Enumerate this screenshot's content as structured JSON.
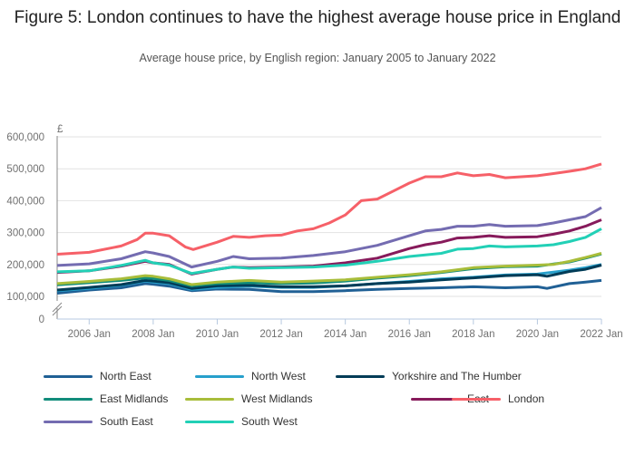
{
  "chart_data": {
    "type": "line",
    "title": "Figure 5: London continues to have the highest average house price in England",
    "subtitle": "Average house price, by English region: January 2005 to January 2022",
    "ylabel": "£",
    "xlabel": "",
    "ylim": [
      0,
      600000
    ],
    "axis_break": "between 0 and 100,000",
    "y_ticks": [
      "0",
      "100,000",
      "200,000",
      "300,000",
      "400,000",
      "500,000",
      "600,000"
    ],
    "y_tick_values": [
      0,
      100000,
      200000,
      300000,
      400000,
      500000,
      600000
    ],
    "x_ticks": [
      "2006 Jan",
      "2008 Jan",
      "2010 Jan",
      "2012 Jan",
      "2014 Jan",
      "2016 Jan",
      "2018 Jan",
      "2020 Jan",
      "2022 Jan"
    ],
    "x_tick_values": [
      2006,
      2008,
      2010,
      2012,
      2014,
      2016,
      2018,
      2020,
      2022
    ],
    "xlim": [
      2005,
      2022
    ],
    "grid": true,
    "legend_placement": "bottom",
    "series": [
      {
        "name": "North East",
        "color": "#206095",
        "x": [
          2005,
          2006,
          2007,
          2007.75,
          2008,
          2008.5,
          2009.2,
          2010,
          2011,
          2012,
          2013,
          2014,
          2015,
          2016,
          2017,
          2018,
          2019,
          2020,
          2020.3,
          2021,
          2021.5,
          2022
        ],
        "values": [
          110000,
          120000,
          127000,
          140000,
          138000,
          132000,
          118000,
          123000,
          122000,
          115000,
          115000,
          118000,
          122000,
          125000,
          127000,
          130000,
          127000,
          130000,
          125000,
          140000,
          145000,
          150000
        ]
      },
      {
        "name": "North West",
        "color": "#27a0cc",
        "x": [
          2005,
          2006,
          2007,
          2007.75,
          2008,
          2008.5,
          2009.2,
          2010,
          2011,
          2012,
          2013,
          2014,
          2015,
          2016,
          2017,
          2018,
          2019,
          2020,
          2021,
          2021.5,
          2022
        ],
        "values": [
          118000,
          125000,
          135000,
          148000,
          145000,
          140000,
          122000,
          128000,
          132000,
          128000,
          128000,
          133000,
          140000,
          147000,
          155000,
          160000,
          167000,
          170000,
          182000,
          190000,
          200000
        ]
      },
      {
        "name": "Yorkshire and The Humber",
        "color": "#003c57",
        "x": [
          2005,
          2006,
          2007,
          2007.75,
          2008,
          2008.5,
          2009.2,
          2010,
          2011,
          2012,
          2013,
          2014,
          2015,
          2016,
          2017,
          2018,
          2019,
          2020,
          2020.3,
          2021,
          2021.5,
          2022
        ],
        "values": [
          120000,
          128000,
          137000,
          150000,
          148000,
          143000,
          125000,
          133000,
          135000,
          130000,
          130000,
          133000,
          140000,
          145000,
          152000,
          158000,
          165000,
          168000,
          163000,
          178000,
          185000,
          198000
        ]
      },
      {
        "name": "East Midlands",
        "color": "#118c7b",
        "x": [
          2005,
          2006,
          2007,
          2007.75,
          2008,
          2008.5,
          2009.2,
          2010,
          2011,
          2012,
          2013,
          2014,
          2015,
          2016,
          2017,
          2018,
          2019,
          2020,
          2021,
          2021.5,
          2022
        ],
        "values": [
          136000,
          143000,
          150000,
          158000,
          156000,
          150000,
          133000,
          140000,
          143000,
          140000,
          142000,
          148000,
          157000,
          165000,
          175000,
          187000,
          193000,
          195000,
          208000,
          220000,
          233000
        ]
      },
      {
        "name": "West Midlands",
        "color": "#a8bd3a",
        "x": [
          2005,
          2006,
          2007,
          2007.75,
          2008,
          2008.5,
          2009.2,
          2010,
          2011,
          2012,
          2013,
          2014,
          2015,
          2016,
          2017,
          2018,
          2019,
          2020,
          2020.5,
          2021,
          2021.5,
          2022
        ],
        "values": [
          140000,
          147000,
          155000,
          165000,
          163000,
          155000,
          137000,
          145000,
          150000,
          145000,
          148000,
          152000,
          160000,
          168000,
          177000,
          190000,
          195000,
          198000,
          200000,
          210000,
          222000,
          235000
        ]
      },
      {
        "name": "East",
        "color": "#871a5b",
        "x": [
          2005,
          2006,
          2007,
          2007.75,
          2008,
          2008.5,
          2009.2,
          2010,
          2010.5,
          2011,
          2012,
          2013,
          2014,
          2015,
          2016,
          2016.5,
          2017,
          2017.5,
          2018,
          2018.5,
          2019,
          2020,
          2020.5,
          2021,
          2021.5,
          2022
        ],
        "values": [
          175000,
          180000,
          195000,
          210000,
          205000,
          200000,
          170000,
          185000,
          192000,
          190000,
          192000,
          195000,
          205000,
          220000,
          250000,
          262000,
          270000,
          283000,
          285000,
          290000,
          285000,
          287000,
          295000,
          305000,
          320000,
          340000
        ]
      },
      {
        "name": "London",
        "color": "#f66068",
        "x": [
          2005,
          2006,
          2007,
          2007.5,
          2007.75,
          2008,
          2008.5,
          2009,
          2009.25,
          2010,
          2010.5,
          2011,
          2011.5,
          2012,
          2012.5,
          2013,
          2013.5,
          2014,
          2014.5,
          2015,
          2015.5,
          2016,
          2016.5,
          2017,
          2017.5,
          2018,
          2018.5,
          2019,
          2019.5,
          2020,
          2020.5,
          2021,
          2021.5,
          2022
        ],
        "values": [
          232000,
          238000,
          258000,
          278000,
          298000,
          298000,
          290000,
          255000,
          247000,
          270000,
          288000,
          285000,
          290000,
          292000,
          305000,
          312000,
          330000,
          355000,
          400000,
          405000,
          430000,
          455000,
          475000,
          475000,
          487000,
          478000,
          482000,
          472000,
          475000,
          478000,
          485000,
          492000,
          500000,
          515000
        ]
      },
      {
        "name": "South East",
        "color": "#746cb1",
        "x": [
          2005,
          2006,
          2007,
          2007.75,
          2008,
          2008.5,
          2009.2,
          2010,
          2010.5,
          2011,
          2012,
          2013,
          2014,
          2015,
          2016,
          2016.5,
          2017,
          2017.5,
          2018,
          2018.5,
          2019,
          2020,
          2020.5,
          2021,
          2021.5,
          2022
        ],
        "values": [
          197000,
          202000,
          218000,
          240000,
          236000,
          225000,
          192000,
          210000,
          225000,
          218000,
          220000,
          228000,
          240000,
          260000,
          290000,
          305000,
          310000,
          320000,
          320000,
          325000,
          320000,
          322000,
          330000,
          340000,
          350000,
          378000
        ]
      },
      {
        "name": "South West",
        "color": "#22d0b6",
        "x": [
          2005,
          2006,
          2007,
          2007.75,
          2008,
          2008.5,
          2009.2,
          2010,
          2010.5,
          2011,
          2012,
          2013,
          2014,
          2015,
          2016,
          2017,
          2017.5,
          2018,
          2018.5,
          2019,
          2020,
          2020.5,
          2021,
          2021.5,
          2022
        ],
        "values": [
          177000,
          180000,
          197000,
          213000,
          205000,
          198000,
          172000,
          185000,
          192000,
          188000,
          190000,
          192000,
          198000,
          210000,
          225000,
          235000,
          248000,
          250000,
          258000,
          255000,
          258000,
          262000,
          272000,
          285000,
          312000
        ]
      }
    ]
  }
}
